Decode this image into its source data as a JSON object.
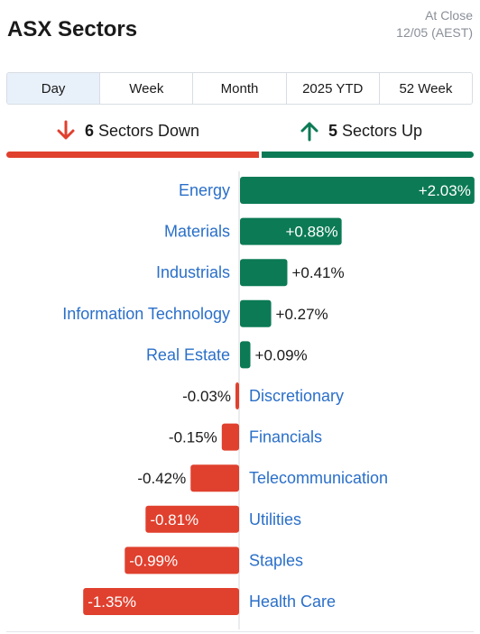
{
  "header": {
    "title": "ASX Sectors",
    "status_line1": "At Close",
    "status_line2": "12/05 (AEST)"
  },
  "tabs": [
    {
      "label": "Day",
      "active": true
    },
    {
      "label": "Week",
      "active": false
    },
    {
      "label": "Month",
      "active": false
    },
    {
      "label": "2025 YTD",
      "active": false
    },
    {
      "label": "52 Week",
      "active": false
    }
  ],
  "summary": {
    "down_count": "6",
    "down_label": "Sectors Down",
    "up_count": "5",
    "up_label": "Sectors Up"
  },
  "colors": {
    "positive": "#0b7a55",
    "negative": "#e0402e",
    "link": "#2a6fc9"
  },
  "chart_data": {
    "type": "bar",
    "orientation": "horizontal",
    "categories": [
      "Energy",
      "Materials",
      "Industrials",
      "Information Technology",
      "Real Estate",
      "Discretionary",
      "Financials",
      "Telecommunication",
      "Utilities",
      "Staples",
      "Health Care"
    ],
    "values": [
      2.03,
      0.88,
      0.41,
      0.27,
      0.09,
      -0.03,
      -0.15,
      -0.42,
      -0.81,
      -0.99,
      -1.35
    ],
    "value_labels": [
      "+2.03%",
      "+0.88%",
      "+0.41%",
      "+0.27%",
      "+0.09%",
      "-0.03%",
      "-0.15%",
      "-0.42%",
      "-0.81%",
      "-0.99%",
      "-1.35%"
    ],
    "unit": "%"
  }
}
